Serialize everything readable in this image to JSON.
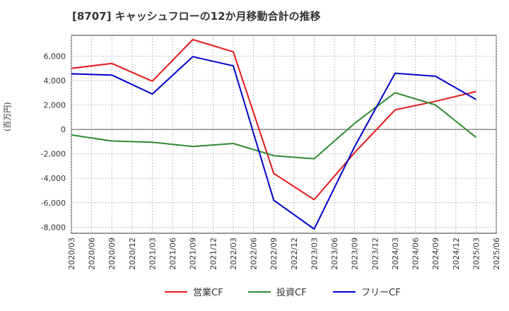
{
  "chart_data": {
    "type": "line",
    "title": "[8707]  キャッシュフローの12か月移動合計の推移",
    "ylabel": "(百万円)",
    "xlabel": "",
    "x": [
      "2020/03",
      "2020/06",
      "2020/09",
      "2020/12",
      "2021/03",
      "2021/06",
      "2021/09",
      "2021/12",
      "2022/03",
      "2022/06",
      "2022/09",
      "2022/12",
      "2023/03",
      "2023/06",
      "2023/09",
      "2023/12",
      "2024/03",
      "2024/06",
      "2024/09",
      "2024/12",
      "2025/03",
      "2025/06"
    ],
    "ylim": [
      -8500,
      7700
    ],
    "yticks": [
      -8000,
      -6000,
      -4000,
      -2000,
      0,
      2000,
      4000,
      6000
    ],
    "ytick_labels": [
      "-8,000",
      "-6,000",
      "-4,000",
      "-2,000",
      "0",
      "2,000",
      "4,000",
      "6,000"
    ],
    "grid": true,
    "legend_position": "bottom",
    "series": [
      {
        "name": "営業CF",
        "color": "#e41a1c",
        "points": [
          [
            "2020/03",
            5000
          ],
          [
            "2020/09",
            5400
          ],
          [
            "2021/03",
            3950
          ],
          [
            "2021/09",
            7350
          ],
          [
            "2022/03",
            6350
          ],
          [
            "2022/09",
            -3600
          ],
          [
            "2023/03",
            -5750
          ],
          [
            "2023/09",
            -1900
          ],
          [
            "2024/03",
            1600
          ],
          [
            "2024/09",
            2300
          ],
          [
            "2025/03",
            3100
          ]
        ]
      },
      {
        "name": "投資CF",
        "color": "#2e8b2e",
        "points": [
          [
            "2020/03",
            -450
          ],
          [
            "2020/09",
            -950
          ],
          [
            "2021/03",
            -1050
          ],
          [
            "2021/09",
            -1400
          ],
          [
            "2022/03",
            -1150
          ],
          [
            "2022/09",
            -2150
          ],
          [
            "2023/03",
            -2400
          ],
          [
            "2023/09",
            500
          ],
          [
            "2024/03",
            3000
          ],
          [
            "2024/09",
            2000
          ],
          [
            "2025/03",
            -650
          ]
        ]
      },
      {
        "name": "フリーCF",
        "color": "#0000cc",
        "points": [
          [
            "2020/03",
            4550
          ],
          [
            "2020/09",
            4450
          ],
          [
            "2021/03",
            2900
          ],
          [
            "2021/09",
            5950
          ],
          [
            "2022/03",
            5200
          ],
          [
            "2022/09",
            -5800
          ],
          [
            "2023/03",
            -8150
          ],
          [
            "2023/09",
            -1400
          ],
          [
            "2024/03",
            4600
          ],
          [
            "2024/09",
            4350
          ],
          [
            "2025/03",
            2450
          ]
        ]
      }
    ]
  }
}
